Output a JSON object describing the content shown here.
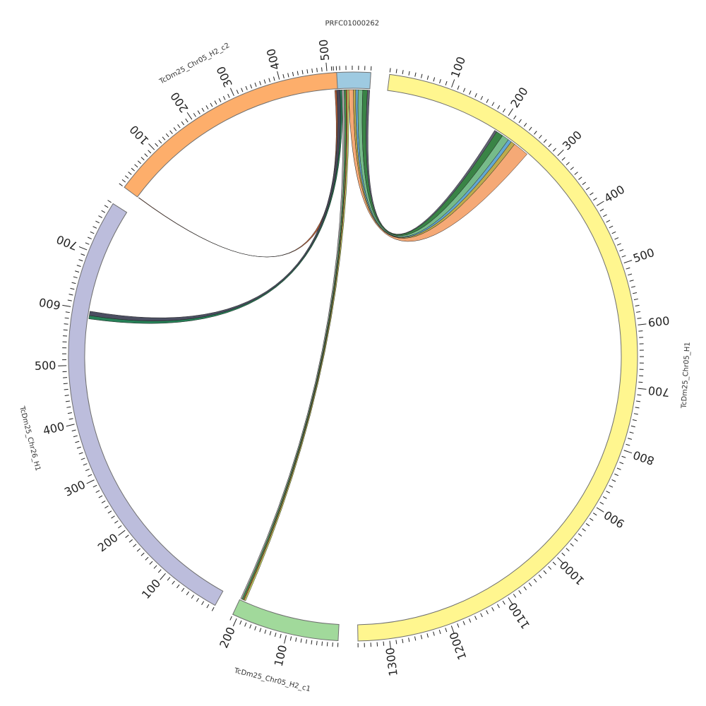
{
  "figure": {
    "type": "circos",
    "segments": [
      {
        "id": "prfc",
        "name": "PRFC01000262",
        "length": 60,
        "color": "#9ecae1",
        "ticks": [],
        "label_side": "outer"
      },
      {
        "id": "h1",
        "name": "TcDm25_Chr05_H1",
        "length": 1350,
        "color": "#fff68f",
        "ticks": [
          100,
          200,
          300,
          400,
          500,
          600,
          700,
          800,
          900,
          1000,
          1100,
          1200,
          1300
        ],
        "label_side": "outer"
      },
      {
        "id": "c1",
        "name": "TcDm25_Chr05_H2_c1",
        "length": 210,
        "color": "#a1d99b",
        "ticks": [
          100,
          200
        ],
        "label_side": "outer"
      },
      {
        "id": "chr26",
        "name": "TcDm25_Chr26_H1",
        "length": 790,
        "color": "#bcbddc",
        "ticks": [
          100,
          200,
          300,
          400,
          500,
          600,
          700
        ],
        "label_side": "outer"
      },
      {
        "id": "c2",
        "name": "TcDm25_Chr05_H2_c2",
        "length": 520,
        "color": "#fdae6b",
        "ticks": [
          100,
          200,
          300,
          400,
          500
        ],
        "label_side": "outer"
      }
    ],
    "links": [
      {
        "from": "prfc",
        "from_range": [
          0,
          8
        ],
        "to": "c2",
        "to_range": [
          0,
          1
        ],
        "color": "#b2542b"
      },
      {
        "from": "prfc",
        "from_range": [
          3,
          9
        ],
        "to": "chr26",
        "to_range": [
          590,
          598
        ],
        "color": "#414559"
      },
      {
        "from": "prfc",
        "from_range": [
          9,
          12
        ],
        "to": "chr26",
        "to_range": [
          584,
          590
        ],
        "color": "#1b7a4f"
      },
      {
        "from": "prfc",
        "from_range": [
          12,
          16
        ],
        "to": "c1",
        "to_range": [
          206,
          209
        ],
        "color": "#a6a6a6"
      },
      {
        "from": "prfc",
        "from_range": [
          16,
          19
        ],
        "to": "c1",
        "to_range": [
          203,
          206
        ],
        "color": "#3b9b4d"
      },
      {
        "from": "prfc",
        "from_range": [
          19,
          21
        ],
        "to": "c1",
        "to_range": [
          201,
          203
        ],
        "color": "#d9652c"
      },
      {
        "from": "prfc",
        "from_range": [
          21,
          24
        ],
        "to": "c1",
        "to_range": [
          198,
          201
        ],
        "color": "#c8d65a"
      },
      {
        "from": "prfc",
        "from_range": [
          24,
          32
        ],
        "to": "h1",
        "to_range": [
          235,
          262
        ],
        "color": "#f4a46f"
      },
      {
        "from": "prfc",
        "from_range": [
          32,
          36
        ],
        "to": "h1",
        "to_range": [
          228,
          235
        ],
        "color": "#b8a642"
      },
      {
        "from": "prfc",
        "from_range": [
          36,
          40
        ],
        "to": "h1",
        "to_range": [
          222,
          228
        ],
        "color": "#5ba3d0"
      },
      {
        "from": "prfc",
        "from_range": [
          40,
          48
        ],
        "to": "h1",
        "to_range": [
          210,
          222
        ],
        "color": "#6fb784"
      },
      {
        "from": "prfc",
        "from_range": [
          48,
          56
        ],
        "to": "h1",
        "to_range": [
          198,
          210
        ],
        "color": "#2e7d3c"
      },
      {
        "from": "prfc",
        "from_range": [
          56,
          60
        ],
        "to": "h1",
        "to_range": [
          194,
          198
        ],
        "color": "#5a5a6e"
      }
    ]
  }
}
